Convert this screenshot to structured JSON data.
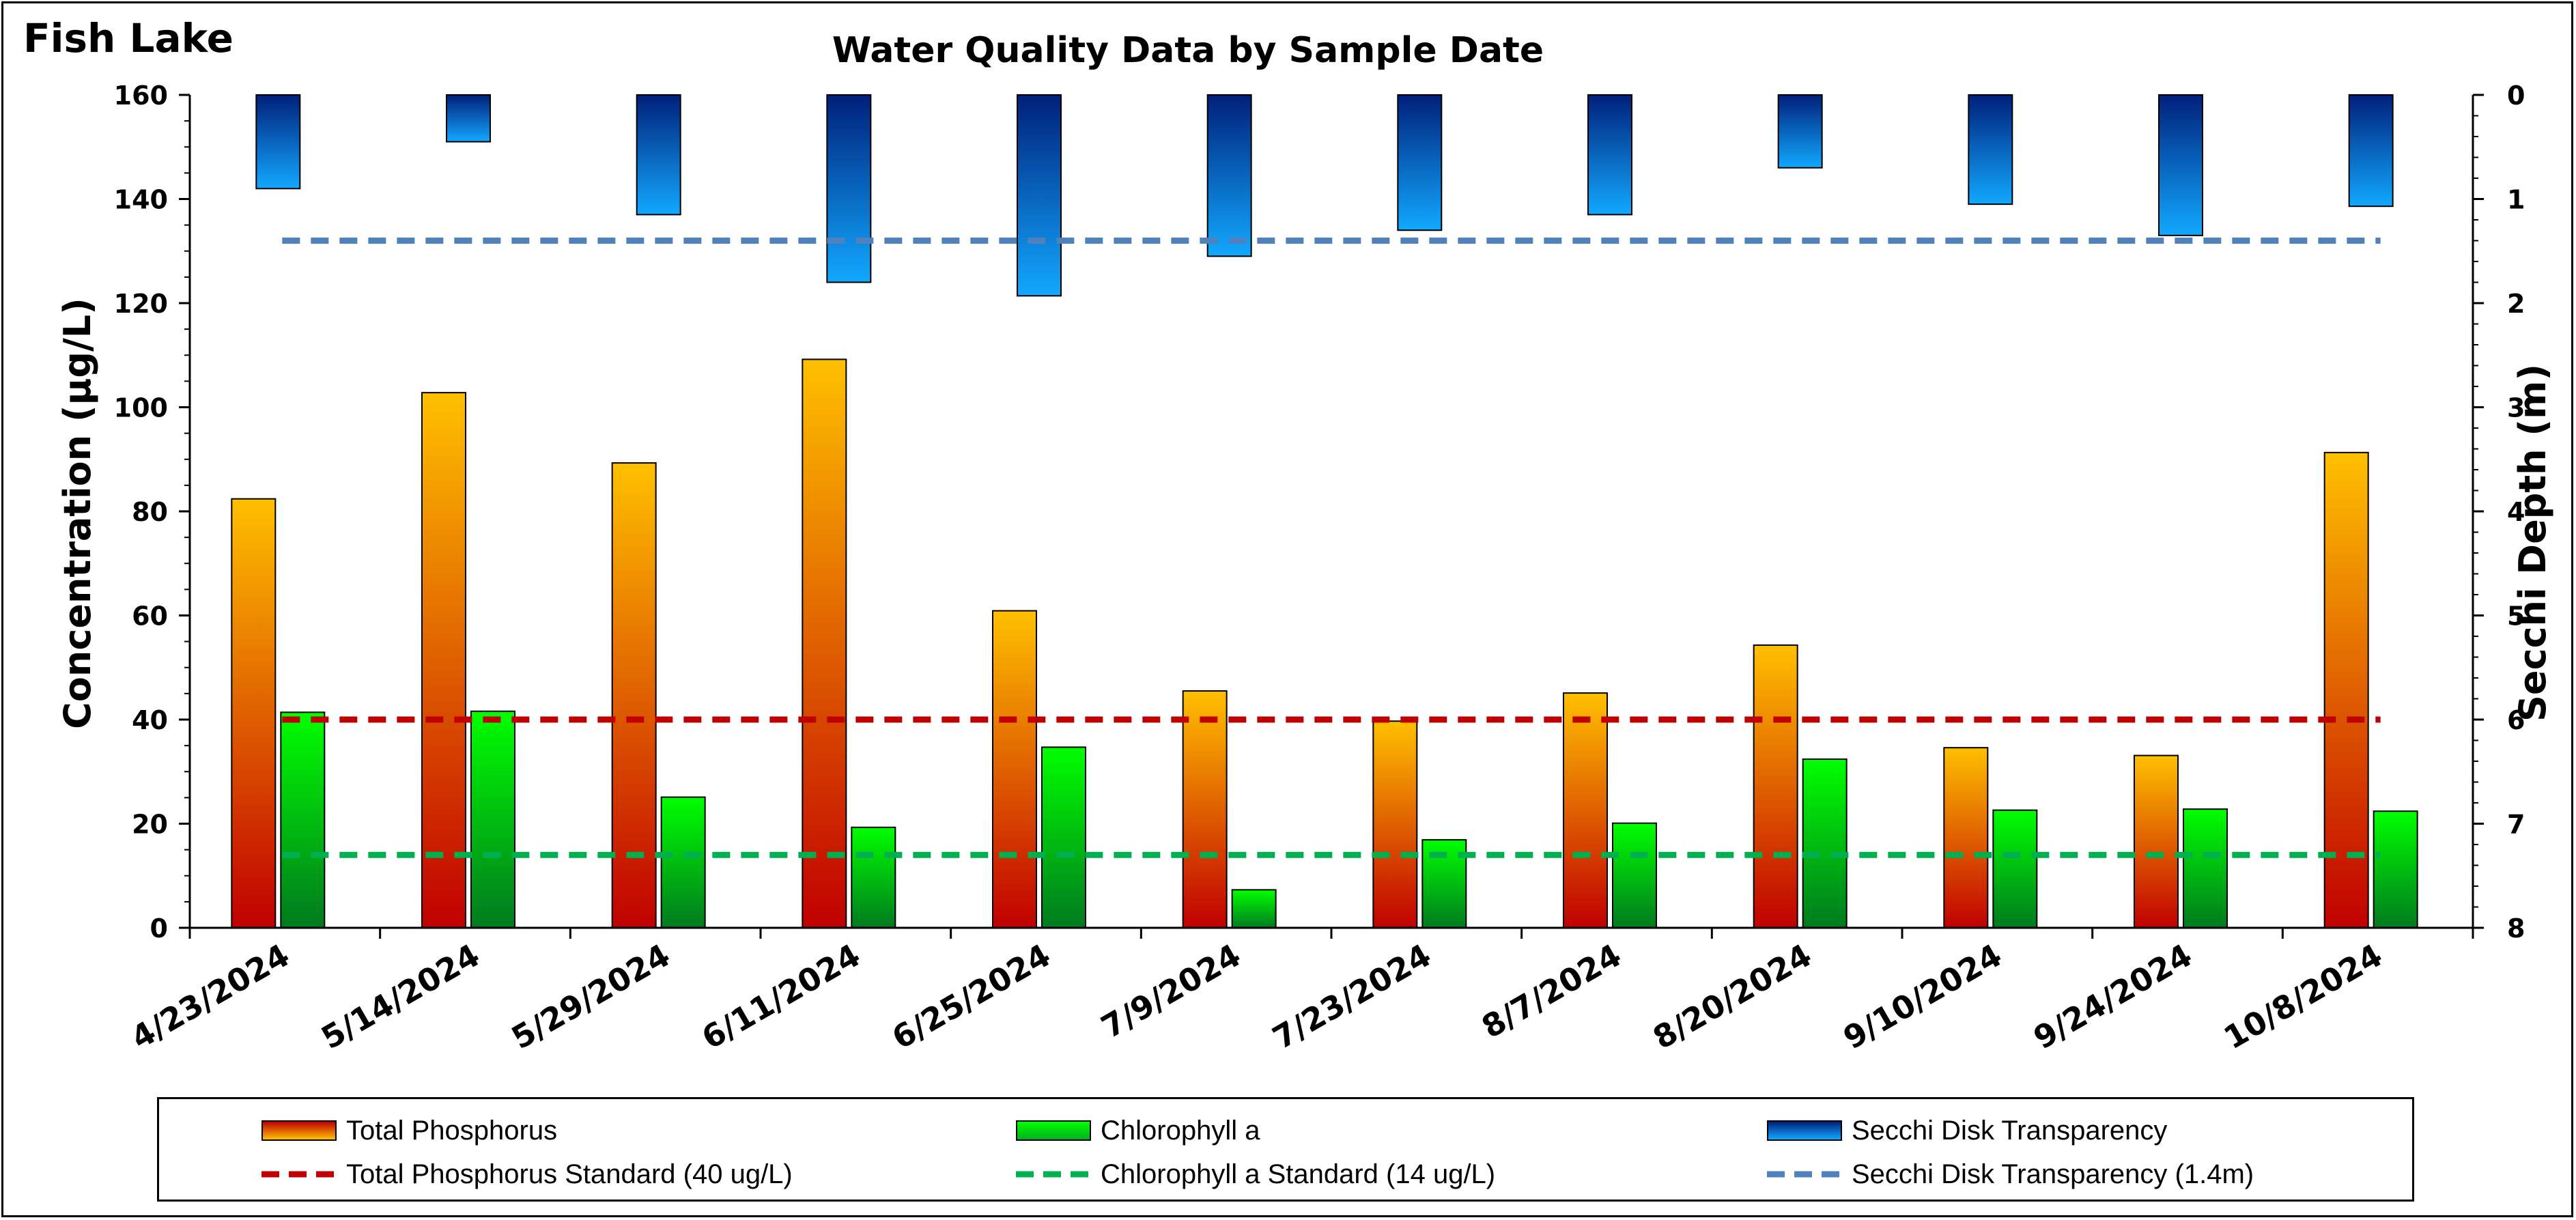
{
  "lake_title": "Fish Lake",
  "chart_data": {
    "type": "bar",
    "title": "Water Quality Data by Sample Date",
    "categories": [
      "4/23/2024",
      "5/14/2024",
      "5/29/2024",
      "6/11/2024",
      "6/25/2024",
      "7/9/2024",
      "7/23/2024",
      "8/7/2024",
      "8/20/2024",
      "9/10/2024",
      "9/24/2024",
      "10/8/2024"
    ],
    "series": [
      {
        "name": "Total Phosphorus",
        "axis": "left",
        "values": [
          82.4,
          102.8,
          89.3,
          109.2,
          60.9,
          45.5,
          39.7,
          45.1,
          54.3,
          34.6,
          33.1,
          91.3
        ]
      },
      {
        "name": "Chlorophyll a",
        "axis": "left",
        "values": [
          41.4,
          41.6,
          25.1,
          19.3,
          34.7,
          7.3,
          16.9,
          20.1,
          32.4,
          22.6,
          22.8,
          22.4
        ]
      },
      {
        "name": "Secchi Disk Transparency",
        "axis": "right",
        "values": [
          0.9,
          0.45,
          1.15,
          1.8,
          1.93,
          1.55,
          1.3,
          1.15,
          0.7,
          1.05,
          1.35,
          1.07
        ]
      }
    ],
    "reference_lines": [
      {
        "name": "Total Phosphorus Standard (40 ug/L)",
        "axis": "left",
        "value": 40,
        "color": "#c00000"
      },
      {
        "name": "Chlorophyll a Standard (14 ug/L)",
        "axis": "left",
        "value": 14,
        "color": "#00b050"
      },
      {
        "name": "Secchi Disk Transparency (1.4m)",
        "axis": "right",
        "value": 1.4,
        "color": "#4f81bd"
      }
    ],
    "ylabel": "Concentration (µg/L)",
    "y2label": "Secchi Depth (m)",
    "ylim": [
      0,
      160
    ],
    "y_ticks": [
      "0",
      "20",
      "40",
      "60",
      "80",
      "100",
      "120",
      "140",
      "160"
    ],
    "y2lim": [
      0,
      8
    ],
    "y2_reversed": true,
    "y2_ticks": [
      "0",
      "1",
      "2",
      "3",
      "4",
      "5",
      "6",
      "7",
      "8"
    ],
    "legend_position": "bottom",
    "grid": false
  },
  "colors": {
    "phosphorus_top": "#ffc000",
    "phosphorus_bottom": "#c00000",
    "chlorophyll_top": "#00ff00",
    "chlorophyll_bottom": "#007a1f",
    "secchi_top": "#00207a",
    "secchi_bottom": "#12a8ff",
    "tp_standard": "#c00000",
    "chl_standard": "#00b050",
    "secchi_standard": "#4f81bd"
  },
  "legend": {
    "tp": "Total Phosphorus",
    "chl": "Chlorophyll a",
    "secchi": "Secchi Disk Transparency",
    "tp_std": "Total Phosphorus Standard (40 ug/L)",
    "chl_std": "Chlorophyll a Standard (14 ug/L)",
    "secchi_std": "Secchi Disk Transparency (1.4m)"
  }
}
